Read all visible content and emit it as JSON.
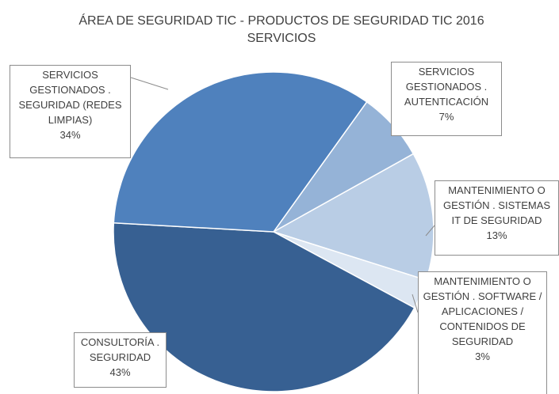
{
  "chart_data": {
    "type": "pie",
    "title": "ÁREA DE SEGURIDAD TIC - PRODUCTOS DE SEGURIDAD TIC 2016 SERVICIOS",
    "categories": [
      "SERVICIOS GESTIONADOS . AUTENTICACIÓN",
      "MANTENIMIENTO O GESTIÓN . SISTEMAS IT DE SEGURIDAD",
      "MANTENIMIENTO O GESTIÓN . SOFTWARE / APLICACIONES / CONTENIDOS DE SEGURIDAD",
      "CONSULTORÍA . SEGURIDAD",
      "SERVICIOS GESTIONADOS . SEGURIDAD (REDES LIMPIAS)"
    ],
    "values": [
      7,
      13,
      3,
      43,
      34
    ],
    "value_labels": [
      "7%",
      "13%",
      "3%",
      "43%",
      "34%"
    ],
    "colors": [
      "#95b3d7",
      "#b9cde5",
      "#dce6f2",
      "#376092",
      "#4f81bd"
    ]
  }
}
